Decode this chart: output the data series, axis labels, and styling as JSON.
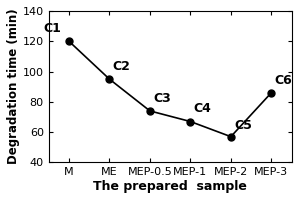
{
  "x_labels": [
    "M",
    "ME",
    "MEP-0.5",
    "MEP-1",
    "MEP-2",
    "MEP-3"
  ],
  "y_values": [
    120,
    95,
    74,
    67,
    57,
    86
  ],
  "point_labels": [
    "C1",
    "C2",
    "C3",
    "C4",
    "C5",
    "C6"
  ],
  "label_offsets_x": [
    -0.18,
    0.08,
    0.08,
    0.08,
    0.08,
    0.08
  ],
  "label_offsets_y": [
    4,
    4,
    4,
    4,
    3,
    4
  ],
  "label_ha": [
    "right",
    "left",
    "left",
    "left",
    "left",
    "left"
  ],
  "xlabel": "The prepared  sample",
  "ylabel": "Degradation time (min)",
  "ylim": [
    40,
    140
  ],
  "yticks": [
    40,
    60,
    80,
    100,
    120,
    140
  ],
  "line_color": "black",
  "marker": "o",
  "marker_size": 5,
  "marker_facecolor": "black",
  "font_size_ticks": 8,
  "font_size_annot": 9,
  "font_size_xlabel": 9,
  "font_size_ylabel": 8.5
}
